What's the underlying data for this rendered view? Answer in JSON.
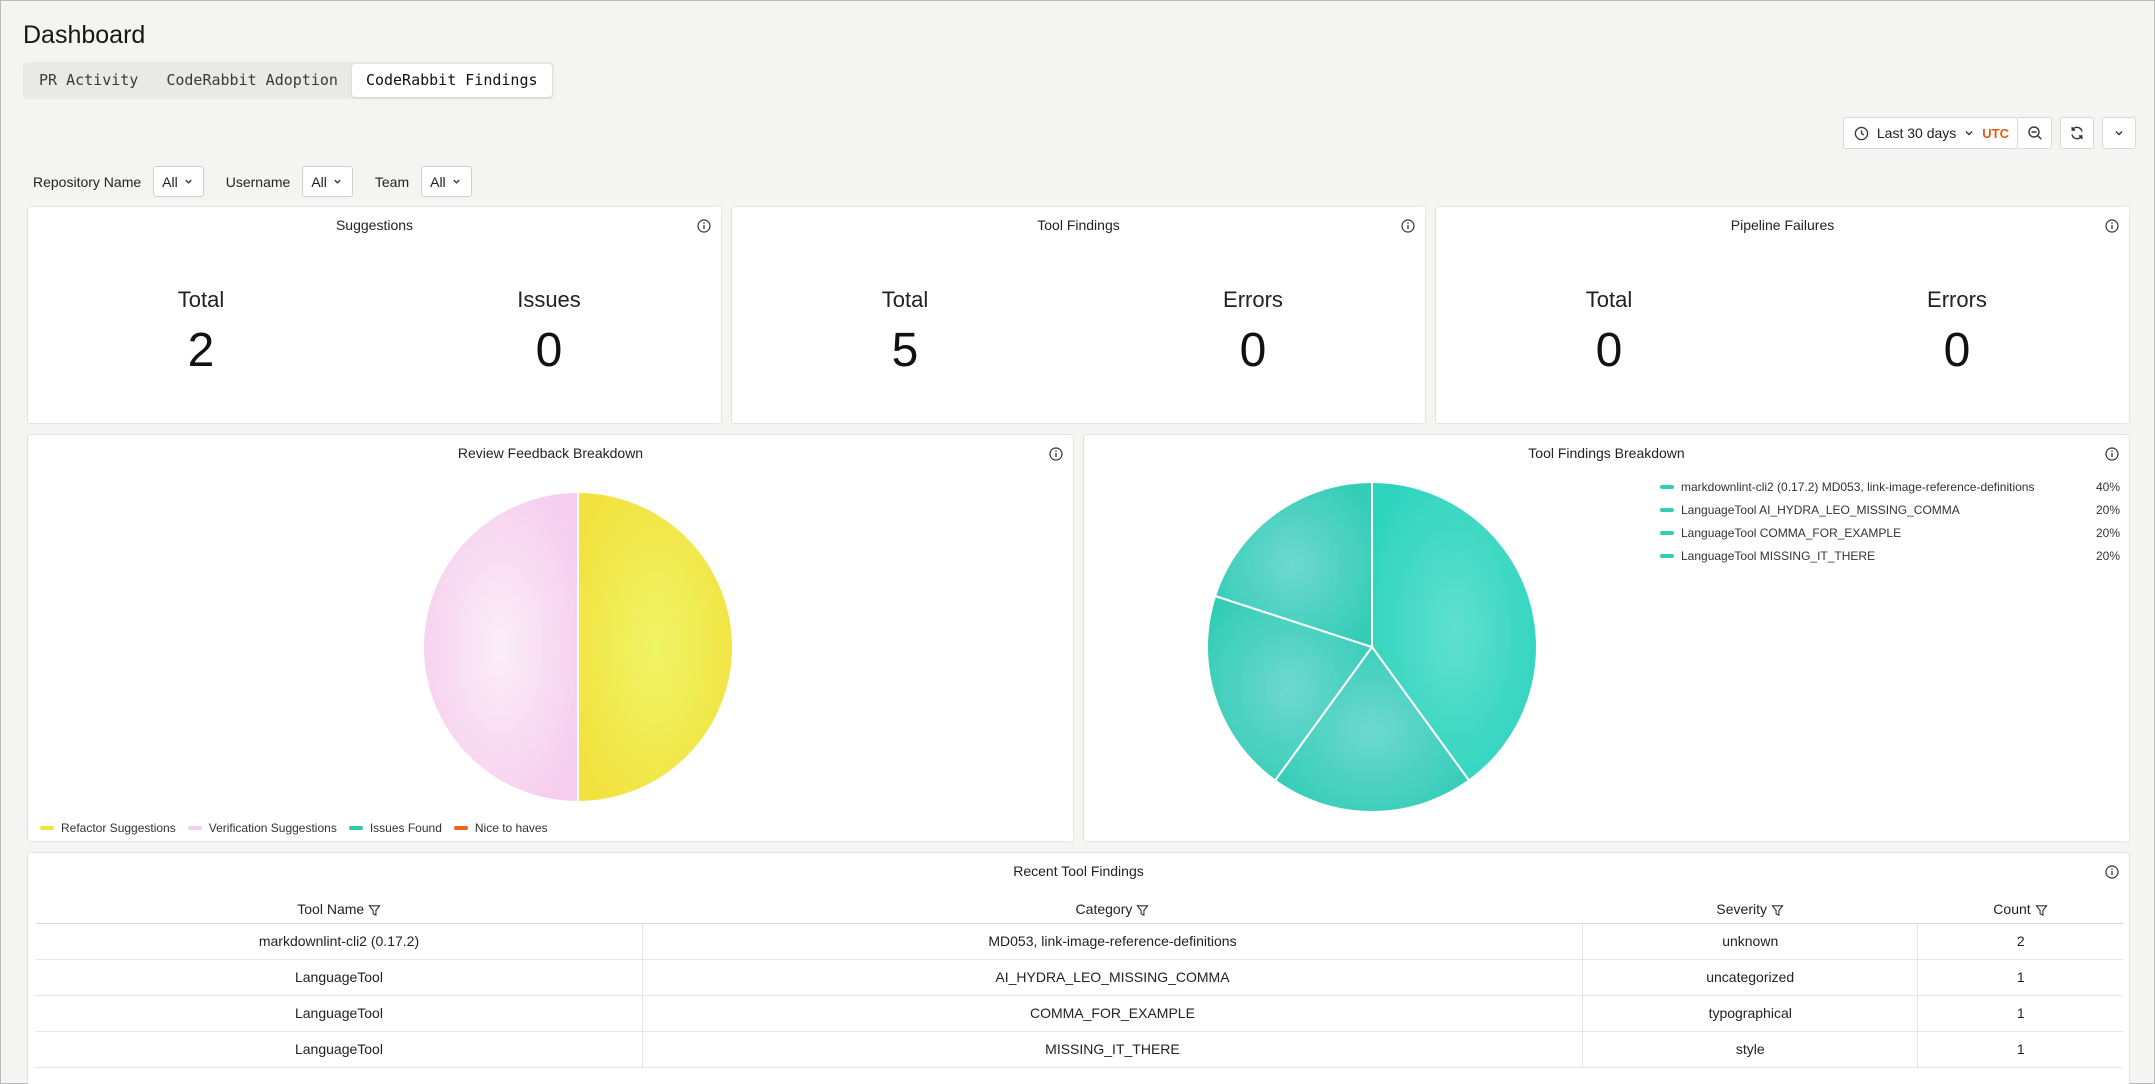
{
  "page": {
    "title": "Dashboard"
  },
  "tabs": [
    {
      "label": "PR Activity"
    },
    {
      "label": "CodeRabbit Adoption"
    },
    {
      "label": "CodeRabbit Findings"
    }
  ],
  "time": {
    "range": "Last 30 days",
    "timezone": "UTC"
  },
  "filters": [
    {
      "label": "Repository Name",
      "value": "All"
    },
    {
      "label": "Username",
      "value": "All"
    },
    {
      "label": "Team",
      "value": "All"
    }
  ],
  "stats": {
    "suggestions": {
      "title": "Suggestions",
      "a_label": "Total",
      "a_value": "2",
      "b_label": "Issues",
      "b_value": "0"
    },
    "tool_findings": {
      "title": "Tool Findings",
      "a_label": "Total",
      "a_value": "5",
      "b_label": "Errors",
      "b_value": "0"
    },
    "pipeline_failures": {
      "title": "Pipeline Failures",
      "a_label": "Total",
      "a_value": "0",
      "b_label": "Errors",
      "b_value": "0"
    }
  },
  "review_breakdown": {
    "title": "Review Feedback Breakdown",
    "legend": [
      {
        "label": "Refactor Suggestions",
        "color": "#f2e23e"
      },
      {
        "label": "Verification Suggestions",
        "color": "#f6cdee"
      },
      {
        "label": "Issues Found",
        "color": "#2fc7ad"
      },
      {
        "label": "Nice to haves",
        "color": "#f0611b"
      }
    ]
  },
  "tool_breakdown": {
    "title": "Tool Findings Breakdown",
    "legend": [
      {
        "label": "markdownlint-cli2 (0.17.2) MD053, link-image-reference-definitions",
        "pct": "40%"
      },
      {
        "label": "LanguageTool AI_HYDRA_LEO_MISSING_COMMA",
        "pct": "20%"
      },
      {
        "label": "LanguageTool COMMA_FOR_EXAMPLE",
        "pct": "20%"
      },
      {
        "label": "LanguageTool MISSING_IT_THERE",
        "pct": "20%"
      }
    ],
    "color": "#33cdb6"
  },
  "chart_data": [
    {
      "type": "pie",
      "title": "Review Feedback Breakdown",
      "categories": [
        "Refactor Suggestions",
        "Verification Suggestions",
        "Issues Found",
        "Nice to haves"
      ],
      "values": [
        1,
        1,
        0,
        0
      ],
      "colors": [
        "#f2e23e",
        "#f6cdee",
        "#2fc7ad",
        "#f0611b"
      ],
      "legend": "bottom-left"
    },
    {
      "type": "pie",
      "title": "Tool Findings Breakdown",
      "categories": [
        "markdownlint-cli2 (0.17.2) MD053, link-image-reference-definitions",
        "LanguageTool AI_HYDRA_LEO_MISSING_COMMA",
        "LanguageTool COMMA_FOR_EXAMPLE",
        "LanguageTool MISSING_IT_THERE"
      ],
      "values": [
        40,
        20,
        20,
        20
      ],
      "legend": "top-right"
    }
  ],
  "recent": {
    "title": "Recent Tool Findings",
    "columns": [
      "Tool Name",
      "Category",
      "Severity",
      "Count"
    ],
    "rows": [
      [
        "markdownlint-cli2 (0.17.2)",
        "MD053, link-image-reference-definitions",
        "unknown",
        "2"
      ],
      [
        "LanguageTool",
        "AI_HYDRA_LEO_MISSING_COMMA",
        "uncategorized",
        "1"
      ],
      [
        "LanguageTool",
        "COMMA_FOR_EXAMPLE",
        "typographical",
        "1"
      ],
      [
        "LanguageTool",
        "MISSING_IT_THERE",
        "style",
        "1"
      ]
    ]
  }
}
